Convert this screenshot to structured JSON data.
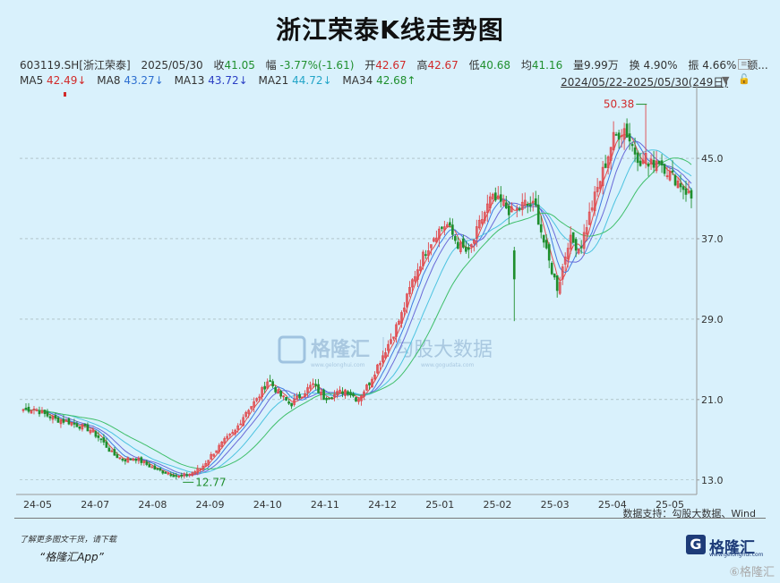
{
  "header": {
    "title": "浙江荣泰K线走势图"
  },
  "quote": {
    "code": "603119.SH[浙江荣泰]",
    "date": "2025/05/30",
    "close_label": "收",
    "close": "41.05",
    "change_label": "幅",
    "change": "-3.77%(-1.61)",
    "open_label": "开",
    "open": "42.67",
    "high_label": "高",
    "high": "42.67",
    "low_label": "低",
    "low": "40.68",
    "avg_label": "均",
    "avg": "41.16",
    "vol_label": "量",
    "vol": "9.99万",
    "turnover_label": "换",
    "turnover": "4.90%",
    "amp_label": "振",
    "amp": "4.66%",
    "amount_label": "额..."
  },
  "ma": [
    {
      "name": "MA5",
      "value": "42.49↓",
      "color": "#d12a2a"
    },
    {
      "name": "MA8",
      "value": "43.27↓",
      "color": "#2d6fd0"
    },
    {
      "name": "MA13",
      "value": "43.72↓",
      "color": "#2b3fc4"
    },
    {
      "name": "MA21",
      "value": "44.72↓",
      "color": "#23a5c8"
    },
    {
      "name": "MA34",
      "value": "42.68↑",
      "color": "#1f8f2e"
    }
  ],
  "range": "2024/05/22-2025/05/30(249日)",
  "watermark": {
    "brand": "格隆汇",
    "brand_url": "www.gelonghui.com",
    "partner": "勾股大数据",
    "partner_url": "www.gogudata.com"
  },
  "footer": {
    "source": "数据支持：勾股大数据、Wind",
    "note": "了解更多图文干货，请下载",
    "app": "“格隆汇App”",
    "logo_mark": "G",
    "logo_name": "格隆汇",
    "logo_url": "www.gelonghui.com",
    "corner": "⑥格隆汇"
  },
  "chart_data": {
    "type": "candlestick",
    "y_ticks": [
      13.0,
      21.0,
      29.0,
      37.0,
      45.0
    ],
    "ylim": [
      12.0,
      51.5
    ],
    "x_labels": [
      "24-05",
      "24-07",
      "24-08",
      "24-09",
      "24-10",
      "24-11",
      "24-12",
      "25-01",
      "25-02",
      "25-03",
      "25-04",
      "25-05"
    ],
    "annotations": [
      {
        "text": "50.38",
        "type": "max"
      },
      {
        "text": "12.77",
        "type": "min"
      }
    ],
    "up_color": "#e0484c",
    "down_color": "#1f8f2e",
    "close_path": [
      [
        0,
        20.0
      ],
      [
        6,
        20.1
      ],
      [
        12,
        19.5
      ],
      [
        18,
        19.0
      ],
      [
        24,
        18.8
      ],
      [
        30,
        18.4
      ],
      [
        36,
        18.0
      ],
      [
        42,
        17.0
      ],
      [
        48,
        15.6
      ],
      [
        54,
        15.0
      ],
      [
        60,
        15.2
      ],
      [
        66,
        14.6
      ],
      [
        72,
        14.0
      ],
      [
        78,
        13.7
      ],
      [
        84,
        13.3
      ],
      [
        90,
        13.6
      ],
      [
        96,
        14.2
      ],
      [
        102,
        15.6
      ],
      [
        108,
        16.8
      ],
      [
        114,
        17.8
      ],
      [
        120,
        19.8
      ],
      [
        126,
        21.0
      ],
      [
        132,
        23.0
      ],
      [
        138,
        21.5
      ],
      [
        144,
        20.5
      ],
      [
        150,
        21.5
      ],
      [
        156,
        22.5
      ],
      [
        162,
        21.2
      ],
      [
        168,
        21.5
      ],
      [
        174,
        22.0
      ],
      [
        180,
        21.0
      ],
      [
        186,
        22.5
      ],
      [
        192,
        24.8
      ],
      [
        198,
        27.0
      ],
      [
        204,
        29.5
      ],
      [
        210,
        33.0
      ],
      [
        216,
        35.5
      ],
      [
        222,
        37.5
      ],
      [
        228,
        38.5
      ],
      [
        234,
        36.5
      ],
      [
        240,
        35.5
      ],
      [
        246,
        38.5
      ],
      [
        252,
        41.0
      ],
      [
        258,
        40.5
      ],
      [
        264,
        39.5
      ],
      [
        270,
        40.5
      ],
      [
        276,
        40.2
      ],
      [
        282,
        35.5
      ],
      [
        288,
        32.0
      ],
      [
        294,
        37.0
      ],
      [
        300,
        36.0
      ],
      [
        306,
        40.0
      ],
      [
        312,
        43.5
      ],
      [
        318,
        47.0
      ],
      [
        324,
        48.0
      ],
      [
        330,
        45.5
      ],
      [
        336,
        44.0
      ],
      [
        342,
        45.0
      ],
      [
        348,
        43.5
      ],
      [
        354,
        42.5
      ],
      [
        360,
        41.05
      ]
    ],
    "ma_curves": [
      {
        "name": "MA5",
        "lag": 3,
        "color": "#e64a4a"
      },
      {
        "name": "MA8",
        "lag": 6,
        "color": "#3d7be0"
      },
      {
        "name": "MA13",
        "lag": 10,
        "color": "#6a6ad8"
      },
      {
        "name": "MA21",
        "lag": 17,
        "color": "#4cc3e0"
      },
      {
        "name": "MA34",
        "lag": 28,
        "color": "#3fbf6a"
      }
    ],
    "special_candles": [
      {
        "t": 265,
        "open": 35.8,
        "close": 33.0,
        "high": 36.2,
        "low": 28.8
      },
      {
        "t": 336,
        "open": 44.5,
        "close": 45.5,
        "high": 50.38,
        "low": 44.0
      }
    ],
    "min_point": {
      "t": 86,
      "value": 12.77
    },
    "max_point": {
      "t": 336,
      "value": 50.38
    }
  }
}
